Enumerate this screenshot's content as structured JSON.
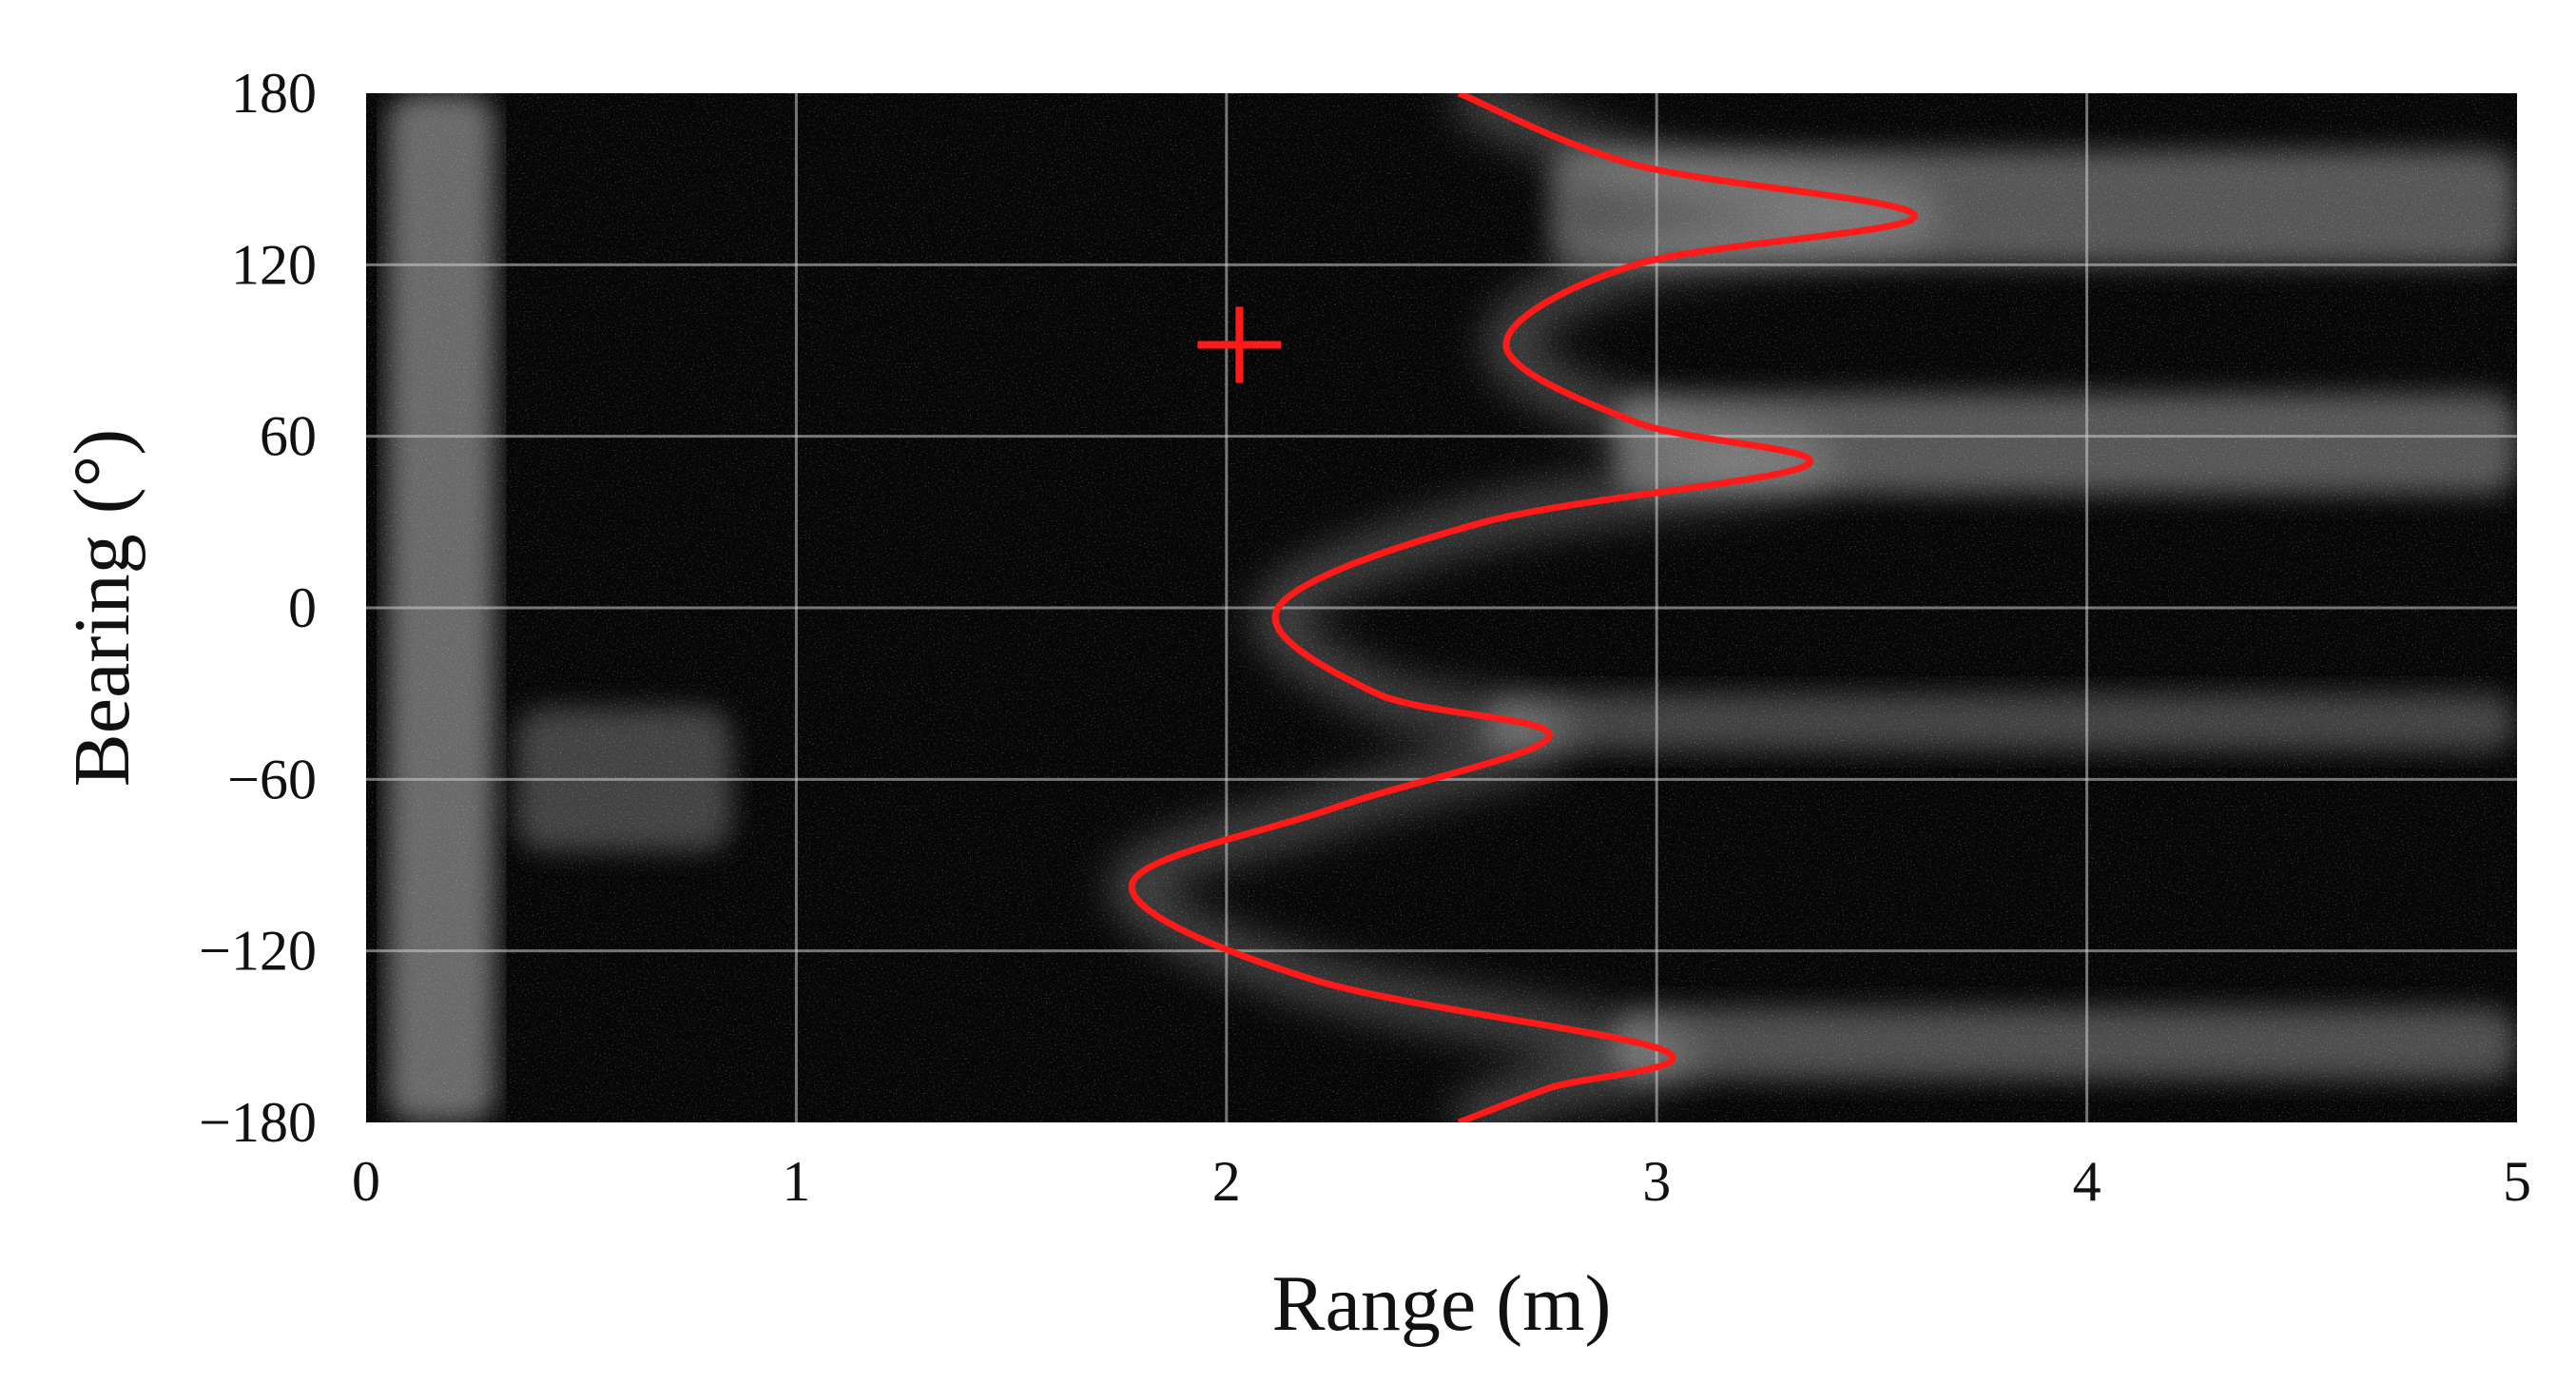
{
  "chart_data": {
    "type": "heatmap",
    "title": "",
    "xlabel": "Range (m)",
    "ylabel": "Bearing (°)",
    "xlim": [
      0,
      5
    ],
    "ylim": [
      -180,
      180
    ],
    "x_ticks": [
      0,
      1,
      2,
      3,
      4,
      5
    ],
    "y_ticks": [
      180,
      120,
      60,
      0,
      -60,
      -120,
      -180
    ],
    "x_tick_labels": [
      "0",
      "1",
      "2",
      "3",
      "4",
      "5"
    ],
    "y_tick_labels": [
      "180",
      "120",
      "60",
      "0",
      "−60",
      "−120",
      "−180"
    ],
    "grid": true,
    "colormap": "grayscale",
    "background_color": "#060606",
    "curve_color": "#ff1a1a",
    "marker_color": "#ff1a1a",
    "red_curve": {
      "points": [
        [
          2.54,
          180
        ],
        [
          2.95,
          155
        ],
        [
          3.6,
          137
        ],
        [
          2.95,
          120
        ],
        [
          2.65,
          92
        ],
        [
          2.95,
          65
        ],
        [
          3.35,
          50
        ],
        [
          2.6,
          30
        ],
        [
          2.12,
          0
        ],
        [
          2.35,
          -30
        ],
        [
          2.75,
          -45
        ],
        [
          2.25,
          -70
        ],
        [
          1.78,
          -97
        ],
        [
          2.2,
          -130
        ],
        [
          3.02,
          -155
        ],
        [
          2.75,
          -168
        ],
        [
          2.54,
          -180
        ]
      ]
    },
    "target_marker": {
      "symbol": "+",
      "x": 2.03,
      "y": 92
    },
    "bright_bands": [
      {
        "x_from": 0.05,
        "x_to": 0.3,
        "y_from": -180,
        "y_to": 180,
        "intensity": 0.55
      },
      {
        "x_from": 2.75,
        "x_to": 5.0,
        "y_from": 120,
        "y_to": 160,
        "intensity": 0.45
      },
      {
        "x_from": 2.9,
        "x_to": 5.0,
        "y_from": 40,
        "y_to": 75,
        "intensity": 0.45
      },
      {
        "x_from": 2.6,
        "x_to": 5.0,
        "y_from": -50,
        "y_to": -30,
        "intensity": 0.35
      },
      {
        "x_from": 2.9,
        "x_to": 5.0,
        "y_from": -165,
        "y_to": -140,
        "intensity": 0.4
      },
      {
        "x_from": 0.35,
        "x_to": 0.85,
        "y_from": -85,
        "y_to": -35,
        "intensity": 0.35
      }
    ]
  }
}
